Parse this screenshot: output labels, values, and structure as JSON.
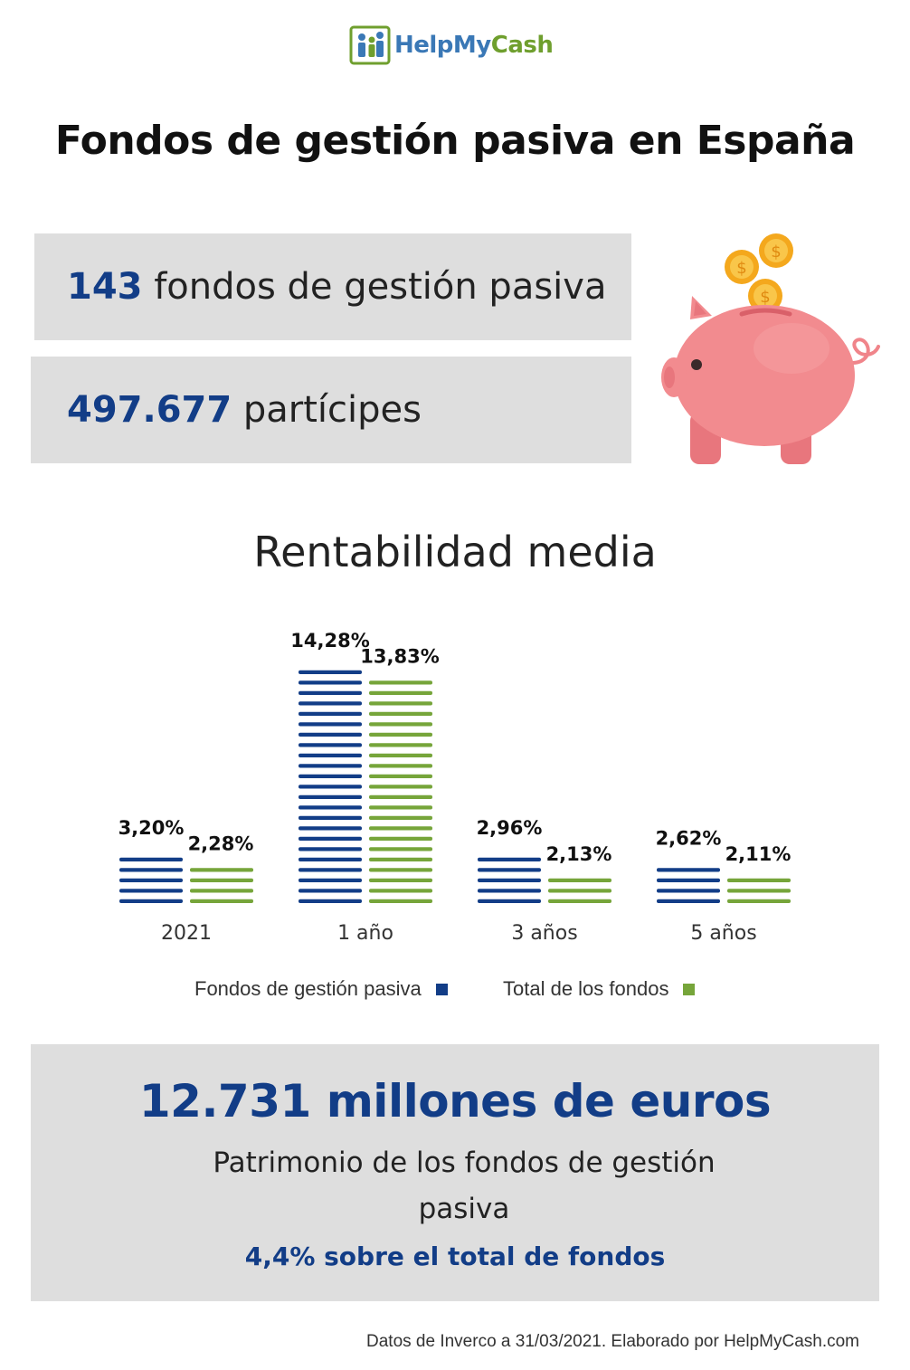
{
  "brand": {
    "name_part1": "HelpMy",
    "name_part2": "Cash"
  },
  "title": "Fondos de gestión pasiva en España",
  "stats": [
    {
      "number": "143",
      "text": " fondos de gestión pasiva"
    },
    {
      "number": "497.677",
      "text": " partícipes"
    }
  ],
  "chart_title": "Rentabilidad media",
  "legend": {
    "series1": "Fondos de gestión pasiva",
    "series2": "Total de los fondos"
  },
  "colors": {
    "series1": "#123d87",
    "series2": "#76a53a",
    "box": "#dedede"
  },
  "chart_data": {
    "type": "bar",
    "categories": [
      "2021",
      "1 año",
      "3 años",
      "5 años"
    ],
    "series": [
      {
        "name": "Fondos de gestión pasiva",
        "values": [
          3.2,
          14.28,
          2.96,
          2.62
        ],
        "labels": [
          "3,20%",
          "14,28%",
          "2,96%",
          "2,62%"
        ]
      },
      {
        "name": "Total de los fondos",
        "values": [
          2.28,
          13.83,
          2.13,
          2.11
        ],
        "labels": [
          "2,28%",
          "13,83%",
          "2,13%",
          "2,11%"
        ]
      }
    ],
    "title": "Rentabilidad media",
    "xlabel": "",
    "ylabel": "",
    "grid": false,
    "legend": "bottom"
  },
  "summary": {
    "amount": "12.731 millones de euros",
    "subtitle": "Patrimonio de los fondos de gestión pasiva",
    "share": "4,4% sobre el total de fondos"
  },
  "source": "Datos de Inverco a 31/03/2021. Elaborado por HelpMyCash.com"
}
